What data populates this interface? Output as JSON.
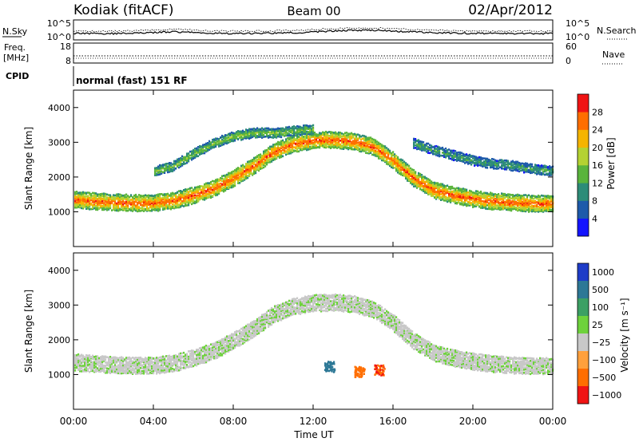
{
  "header": {
    "station": "Kodiak (fitACF)",
    "beam": "Beam 00",
    "date": "02/Apr/2012"
  },
  "panels": {
    "nsky": {
      "label": "N.Sky",
      "left_ticks": [
        "10^5",
        "10^0"
      ],
      "right_ticks": [
        "10^5",
        "10^0"
      ],
      "right_label": "N.Search"
    },
    "freq": {
      "label_lines": [
        "Freq.",
        "[MHz]"
      ],
      "left_ticks": [
        "18",
        "8"
      ],
      "right_ticks": [
        "60",
        "0"
      ],
      "right_label": "Nave"
    },
    "cpid": {
      "label": "CPID",
      "text": "normal (fast) 151 RF"
    }
  },
  "chart_data": [
    {
      "type": "heatmap",
      "name": "power",
      "ylabel": "Slant Range [km]",
      "xlabel": "",
      "ylim": [
        0,
        4500
      ],
      "yticks": [
        1000,
        2000,
        3000,
        4000
      ],
      "colorbar": {
        "label": "Power [dB]",
        "ticks": [
          4,
          8,
          12,
          16,
          20,
          24,
          28
        ],
        "range": [
          0,
          32
        ],
        "colors": [
          "#1414ff",
          "#1e5aaa",
          "#2d8c78",
          "#5ab43c",
          "#b4d232",
          "#f5b400",
          "#ff6e00",
          "#f01414"
        ]
      },
      "features": [
        {
          "kind": "band",
          "x": [
            0,
            1,
            2,
            3,
            4,
            5,
            6,
            7,
            8,
            9,
            10,
            11,
            12,
            13,
            14,
            15,
            16,
            17,
            18,
            19,
            20,
            21,
            22,
            23,
            24
          ],
          "y": [
            1380,
            1330,
            1300,
            1280,
            1280,
            1350,
            1500,
            1700,
            2000,
            2350,
            2750,
            2980,
            3080,
            3100,
            3050,
            2900,
            2500,
            2000,
            1650,
            1500,
            1400,
            1330,
            1290,
            1260,
            1270
          ],
          "value": 28
        },
        {
          "kind": "band",
          "x": [
            4,
            5,
            6,
            7,
            8,
            9,
            10,
            11,
            12
          ],
          "y": [
            2200,
            2350,
            2700,
            3000,
            3200,
            3300,
            3300,
            3350,
            3400
          ],
          "value": 16
        },
        {
          "kind": "band",
          "x": [
            17,
            18,
            19,
            20,
            21,
            22,
            23,
            24
          ],
          "y": [
            3000,
            2800,
            2650,
            2500,
            2400,
            2350,
            2250,
            2200
          ],
          "value": 12
        }
      ]
    },
    {
      "type": "heatmap",
      "name": "velocity",
      "ylabel": "Slant Range [km]",
      "xlabel": "Time UT",
      "ylim": [
        0,
        4500
      ],
      "yticks": [
        1000,
        2000,
        3000,
        4000
      ],
      "xlim": [
        0,
        24
      ],
      "xticks": [
        "00:00",
        "04:00",
        "08:00",
        "12:00",
        "16:00",
        "20:00",
        "00:00"
      ],
      "colorbar": {
        "label": "Velocity [m s⁻¹]",
        "ticks": [
          "1000",
          "500",
          "100",
          "25",
          "−25",
          "−100",
          "−500",
          "−1000"
        ],
        "colors": [
          "#1e3cc8",
          "#2d7896",
          "#3ca064",
          "#6ed23c",
          "#c8c8c8",
          "#ffa03c",
          "#ff6e00",
          "#f01414"
        ]
      },
      "features": [
        {
          "kind": "band",
          "x": [
            0,
            1,
            2,
            3,
            4,
            5,
            6,
            7,
            8,
            9,
            10,
            11,
            12,
            13,
            14,
            15,
            16,
            17,
            18,
            19,
            20,
            21,
            22,
            23,
            24
          ],
          "y": [
            1380,
            1330,
            1300,
            1280,
            1280,
            1350,
            1500,
            1700,
            2000,
            2350,
            2750,
            2980,
            3080,
            3100,
            3050,
            2900,
            2500,
            2000,
            1650,
            1500,
            1400,
            1330,
            1290,
            1260,
            1270
          ],
          "value": 0
        },
        {
          "kind": "blob",
          "x": 12.8,
          "y": 1250,
          "value": 300
        },
        {
          "kind": "blob",
          "x": 14.3,
          "y": 1100,
          "value": -300
        },
        {
          "kind": "blob",
          "x": 15.3,
          "y": 1150,
          "value": -500
        }
      ]
    }
  ]
}
